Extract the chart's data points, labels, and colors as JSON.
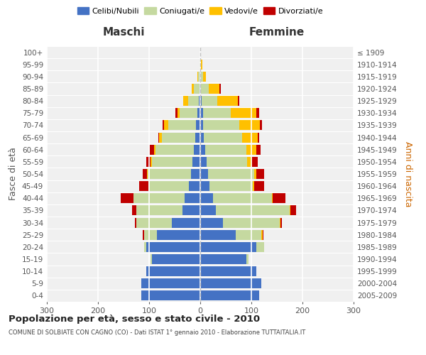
{
  "age_groups": [
    "0-4",
    "5-9",
    "10-14",
    "15-19",
    "20-24",
    "25-29",
    "30-34",
    "35-39",
    "40-44",
    "45-49",
    "50-54",
    "55-59",
    "60-64",
    "65-69",
    "70-74",
    "75-79",
    "80-84",
    "85-89",
    "90-94",
    "95-99",
    "100+"
  ],
  "birth_years": [
    "2005-2009",
    "2000-2004",
    "1995-1999",
    "1990-1994",
    "1985-1989",
    "1980-1984",
    "1975-1979",
    "1970-1974",
    "1965-1969",
    "1960-1964",
    "1955-1959",
    "1950-1954",
    "1945-1949",
    "1940-1944",
    "1935-1939",
    "1930-1934",
    "1925-1929",
    "1920-1924",
    "1915-1919",
    "1910-1914",
    "≤ 1909"
  ],
  "male": {
    "celibi": [
      115,
      115,
      105,
      95,
      105,
      85,
      55,
      35,
      30,
      22,
      18,
      15,
      12,
      10,
      8,
      5,
      3,
      2,
      1,
      0,
      0
    ],
    "coniugati": [
      0,
      0,
      0,
      2,
      5,
      25,
      70,
      90,
      100,
      80,
      85,
      80,
      75,
      65,
      55,
      35,
      20,
      10,
      3,
      1,
      0
    ],
    "vedovi": [
      0,
      0,
      0,
      0,
      0,
      0,
      0,
      0,
      0,
      0,
      1,
      2,
      3,
      5,
      8,
      5,
      10,
      5,
      2,
      0,
      0
    ],
    "divorziati": [
      0,
      0,
      0,
      0,
      0,
      2,
      3,
      8,
      25,
      18,
      8,
      8,
      8,
      2,
      2,
      3,
      0,
      0,
      0,
      0,
      0
    ]
  },
  "female": {
    "nubili": [
      115,
      120,
      110,
      90,
      110,
      70,
      45,
      30,
      25,
      18,
      15,
      12,
      10,
      7,
      6,
      5,
      3,
      2,
      1,
      0,
      0
    ],
    "coniugate": [
      0,
      0,
      0,
      5,
      15,
      50,
      110,
      145,
      115,
      85,
      90,
      80,
      80,
      75,
      70,
      55,
      30,
      15,
      5,
      2,
      0
    ],
    "vedove": [
      0,
      0,
      0,
      0,
      0,
      2,
      2,
      2,
      2,
      2,
      5,
      10,
      20,
      30,
      40,
      50,
      40,
      20,
      5,
      2,
      0
    ],
    "divorziate": [
      0,
      0,
      0,
      0,
      0,
      2,
      3,
      10,
      25,
      20,
      15,
      10,
      8,
      3,
      5,
      5,
      3,
      3,
      0,
      0,
      0
    ]
  },
  "colors": {
    "celibi": "#4472c4",
    "coniugati": "#c5d9a0",
    "vedovi": "#ffc000",
    "divorziati": "#c00000"
  },
  "title": "Popolazione per età, sesso e stato civile - 2010",
  "subtitle": "COMUNE DI SOLBIATE CON CAGNO (CO) - Dati ISTAT 1° gennaio 2010 - Elaborazione TUTTAITALIA.IT",
  "ylabel_left": "Fasce di età",
  "ylabel_right": "Anni di nascita",
  "xlabel_left": "Maschi",
  "xlabel_right": "Femmine",
  "xlim": 300,
  "bg_color": "#f0f0f0",
  "grid_color": "#ffffff"
}
